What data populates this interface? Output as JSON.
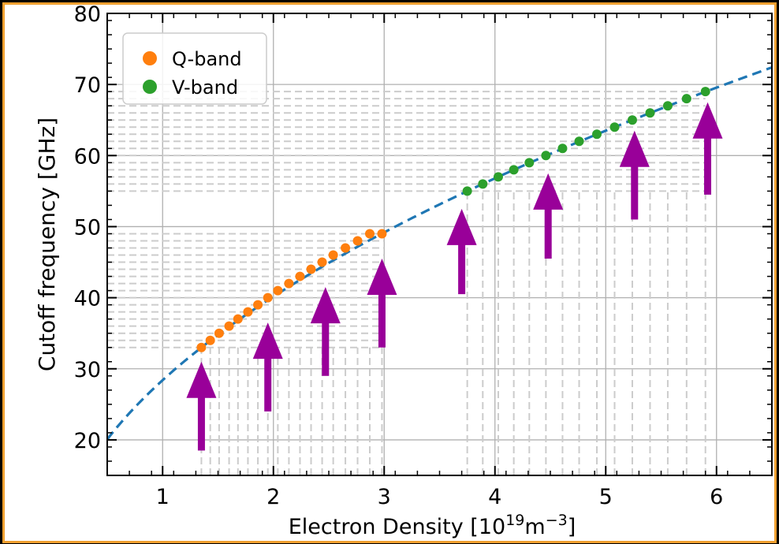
{
  "chart_data": {
    "type": "scatter",
    "xlabel_main": "Electron Density [10",
    "xlabel_exp1": "19",
    "xlabel_unit": "m",
    "xlabel_exp2": "−3",
    "xlabel_end": "]",
    "ylabel": "Cutoff frequency [GHz]",
    "xlim": [
      0.5,
      6.5
    ],
    "ylim": [
      15,
      80
    ],
    "xticks": [
      1,
      2,
      3,
      4,
      5,
      6
    ],
    "yticks": [
      20,
      30,
      40,
      50,
      60,
      70,
      80
    ],
    "grid": true,
    "legend_position": "top-left",
    "curve": {
      "style": "dashed",
      "color": "#1f77b4",
      "formula_coeff": 8.98,
      "x_range": [
        0.5,
        6.5
      ]
    },
    "series": [
      {
        "name": "Q-band",
        "color": "#ff7f0e",
        "x": [
          1.35,
          1.43,
          1.51,
          1.6,
          1.68,
          1.77,
          1.86,
          1.95,
          2.04,
          2.14,
          2.24,
          2.34,
          2.44,
          2.54,
          2.65,
          2.76,
          2.87,
          2.98
        ],
        "y": [
          33,
          34,
          35,
          36,
          37,
          38,
          39,
          40,
          41,
          42,
          43,
          44,
          45,
          46,
          47,
          48,
          49,
          49
        ]
      },
      {
        "name": "V-band",
        "color": "#2ca02c",
        "x": [
          3.75,
          3.89,
          4.03,
          4.17,
          4.31,
          4.46,
          4.61,
          4.76,
          4.92,
          5.08,
          5.24,
          5.4,
          5.56,
          5.73,
          5.9
        ],
        "y": [
          55,
          56,
          57,
          58,
          59,
          60,
          61,
          62,
          63,
          64,
          65,
          66,
          67,
          68,
          69
        ]
      }
    ],
    "hlines": {
      "color": "#cccccc",
      "bands": [
        {
          "x": [
            0.5,
            3.0
          ],
          "y_from": 33,
          "y_to": 49,
          "step": 1
        },
        {
          "x": [
            0.5,
            5.9
          ],
          "y_from": 55,
          "y_to": 69,
          "step": 1
        }
      ]
    },
    "vlines": {
      "color": "#cccccc",
      "q_band_top": 33,
      "v_band_top": 55,
      "q_x": [
        1.35,
        1.43,
        1.51,
        1.6,
        1.68,
        1.77,
        1.86,
        1.95,
        2.04,
        2.14,
        2.24,
        2.34,
        2.44,
        2.54,
        2.65,
        2.76,
        2.87,
        2.98
      ],
      "v_x": [
        3.75,
        3.89,
        4.03,
        4.17,
        4.31,
        4.46,
        4.61,
        4.76,
        4.92,
        5.08,
        5.24,
        5.4,
        5.56,
        5.73,
        5.9
      ]
    },
    "arrows": {
      "color": "#990099",
      "items": [
        {
          "x": 1.35,
          "y_base": 18.5,
          "y_tip": 31
        },
        {
          "x": 1.95,
          "y_base": 24,
          "y_tip": 36.5
        },
        {
          "x": 2.47,
          "y_base": 29,
          "y_tip": 41.5
        },
        {
          "x": 2.98,
          "y_base": 33,
          "y_tip": 45.5
        },
        {
          "x": 3.7,
          "y_base": 40.5,
          "y_tip": 52.5
        },
        {
          "x": 4.48,
          "y_base": 45.5,
          "y_tip": 57.5
        },
        {
          "x": 5.26,
          "y_base": 51,
          "y_tip": 63.5
        },
        {
          "x": 5.92,
          "y_base": 54.5,
          "y_tip": 67.5
        }
      ]
    }
  }
}
